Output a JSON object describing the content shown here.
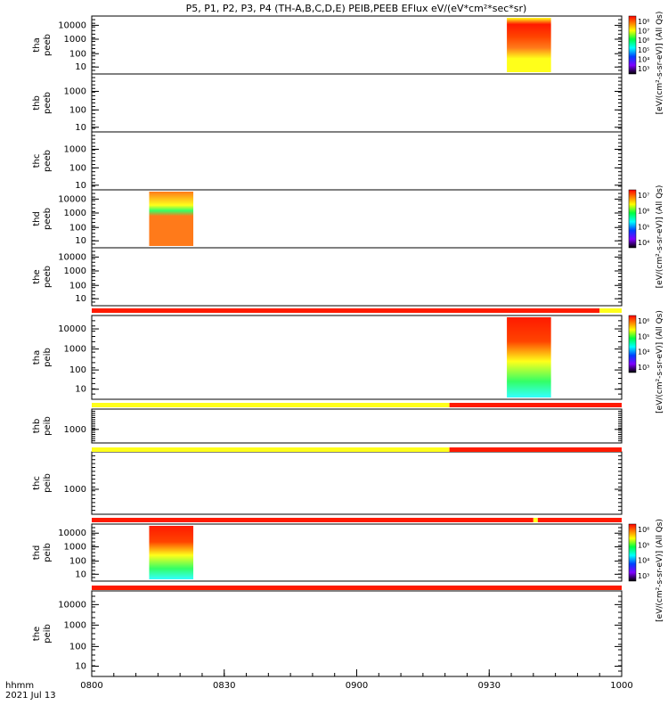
{
  "title": "P5, P1, P2, P3, P4 (TH-A,B,C,D,E) PEIB,PEEB EFlux eV/(eV*cm²*sec*sr)",
  "time_axis": {
    "ticks": [
      "0800",
      "0830",
      "0900",
      "0930",
      "1000"
    ],
    "label_fmt": "hhmm",
    "date": "2021 Jul 13"
  },
  "colors": {
    "red": "#ff1a00",
    "orange_red": "#ff4400",
    "orange": "#ff7a1a",
    "yellow": "#ffff1a",
    "green": "#33ff66",
    "cyan": "#33ffff"
  },
  "colorbars": [
    {
      "panel": "tha_peeb",
      "labels": [
        "10⁸",
        "10⁷",
        "10⁶",
        "10⁵",
        "10⁴",
        "10³"
      ],
      "units": "[eV/(cm²-s-sr-eV)] (All Qs)"
    },
    {
      "panel": "thd_peeb",
      "labels": [
        "10⁷",
        "10⁶",
        "10⁵",
        "10⁴"
      ],
      "units": "[eV/(cm²-s-sr-eV)] (All Qs)"
    },
    {
      "panel": "tha_peib",
      "labels": [
        "10⁶",
        "10⁵",
        "10⁴",
        "10³"
      ],
      "units": "[eV/(cm²-s-sr-eV)] (All Qs)"
    },
    {
      "panel": "thd_peib",
      "labels": [
        "10⁶",
        "10⁵",
        "10⁴",
        "10³"
      ],
      "units": "[eV/(cm²-s-sr-eV)] (All Qs)"
    }
  ],
  "chart_data": {
    "type": "heatmap",
    "title": "P5, P1, P2, P3, P4 (TH-A,B,C,D,E) PEIB,PEEB EFlux eV/(eV*cm²*sec*sr)",
    "x_axis": {
      "type": "time",
      "range": [
        "0800",
        "1000"
      ],
      "ticks": [
        "0800",
        "0830",
        "0900",
        "0930",
        "1000"
      ]
    },
    "y_scale": "log",
    "panels": [
      {
        "id": "tha_peeb",
        "label": [
          "tha",
          "peeb"
        ],
        "yticks": [
          "10000",
          "1000",
          "100",
          "10"
        ],
        "data_blocks": [
          {
            "start": "0934",
            "end": "0944"
          }
        ]
      },
      {
        "id": "thb_peeb",
        "label": [
          "thb",
          "peeb"
        ],
        "yticks": [
          "1000",
          "100",
          "10"
        ],
        "data_blocks": []
      },
      {
        "id": "thc_peeb",
        "label": [
          "thc",
          "peeb"
        ],
        "yticks": [
          "1000",
          "100",
          "10"
        ],
        "data_blocks": []
      },
      {
        "id": "thd_peeb",
        "label": [
          "thd",
          "peeb"
        ],
        "yticks": [
          "10000",
          "1000",
          "100",
          "10"
        ],
        "data_blocks": [
          {
            "start": "0813",
            "end": "0823"
          }
        ]
      },
      {
        "id": "the_peeb",
        "label": [
          "the",
          "peeb"
        ],
        "yticks": [
          "10000",
          "1000",
          "100",
          "10"
        ],
        "data_blocks": []
      },
      {
        "id": "tha_peib",
        "label": [
          "tha",
          "peib"
        ],
        "yticks": [
          "10000",
          "1000",
          "100",
          "10"
        ],
        "data_blocks": [
          {
            "start": "0934",
            "end": "0944"
          }
        ]
      },
      {
        "id": "thb_peib",
        "label": [
          "thb",
          "peib"
        ],
        "yticks": [
          "1000"
        ],
        "data_blocks": []
      },
      {
        "id": "thc_peib",
        "label": [
          "thc",
          "peib"
        ],
        "yticks": [
          "1000"
        ],
        "data_blocks": []
      },
      {
        "id": "thd_peib",
        "label": [
          "thd",
          "peib"
        ],
        "yticks": [
          "10000",
          "1000",
          "100",
          "10"
        ],
        "data_blocks": [
          {
            "start": "0813",
            "end": "0823"
          }
        ]
      },
      {
        "id": "the_peib",
        "label": [
          "the",
          "peib"
        ],
        "yticks": [
          "10000",
          "1000",
          "100",
          "10"
        ],
        "data_blocks": []
      }
    ],
    "mode_bars": [
      {
        "after_panel": "the_peeb",
        "segments": [
          {
            "start": "0800",
            "end": "0955",
            "color": "red"
          },
          {
            "start": "0955",
            "end": "1000",
            "color": "yellow"
          }
        ]
      },
      {
        "after_panel": "tha_peib",
        "segments": [
          {
            "start": "0800",
            "end": "0921",
            "color": "yellow"
          },
          {
            "start": "0921",
            "end": "1000",
            "color": "red"
          }
        ]
      },
      {
        "after_panel": "thb_peib",
        "segments": [
          {
            "start": "0800",
            "end": "0921",
            "color": "yellow"
          },
          {
            "start": "0921",
            "end": "1000",
            "color": "red"
          }
        ]
      },
      {
        "after_panel": "thc_peib",
        "segments": [
          {
            "start": "0800",
            "end": "0940",
            "color": "red"
          },
          {
            "start": "0940",
            "end": "0941",
            "color": "yellow"
          },
          {
            "start": "0941",
            "end": "1000",
            "color": "red"
          }
        ]
      },
      {
        "after_panel": "thd_peib",
        "segments": [
          {
            "start": "0800",
            "end": "1000",
            "color": "red"
          }
        ]
      }
    ]
  }
}
